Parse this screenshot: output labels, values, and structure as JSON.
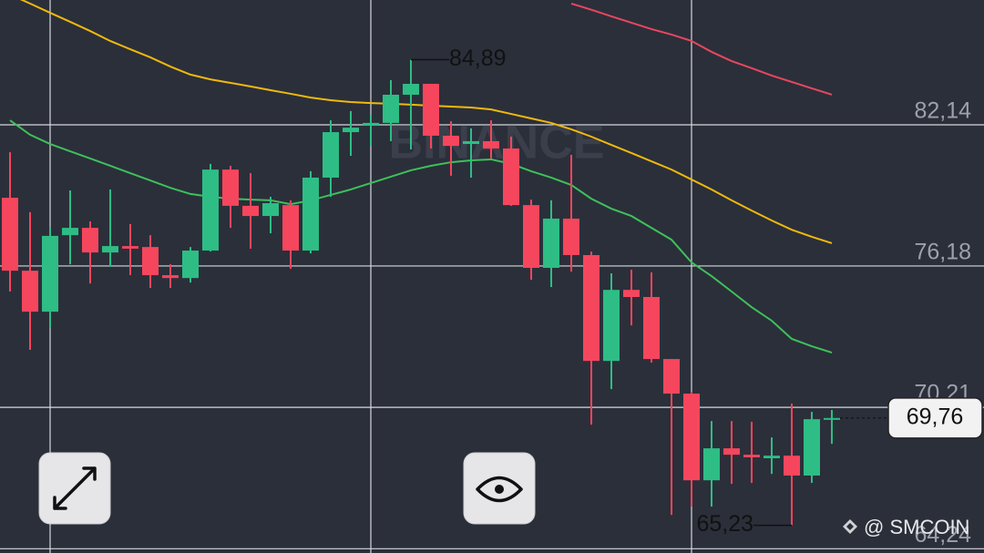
{
  "chart_data": {
    "type": "candlestick",
    "ylim": [
      64.06,
      87.41
    ],
    "yticks": [
      {
        "value": 82.14,
        "label": "82,14"
      },
      {
        "value": 76.18,
        "label": "76,18"
      },
      {
        "value": 70.21,
        "label": "70,21"
      },
      {
        "value": 64.24,
        "label": "64,24"
      }
    ],
    "grid": true,
    "up_color": "#2ebd85",
    "down_color": "#f6465d",
    "open": [
      79.06,
      75.98,
      74.25,
      77.48,
      77.79,
      76.75,
      77.02,
      76.98,
      75.79,
      75.67,
      76.83,
      80.25,
      78.72,
      78.29,
      78.75,
      76.83,
      79.91,
      81.83,
      82.1,
      82.22,
      83.41,
      83.87,
      81.68,
      81.33,
      81.45,
      81.14,
      78.75,
      76.1,
      78.18,
      76.64,
      72.17,
      75.17,
      74.87,
      72.25,
      70.79,
      67.13,
      68.48,
      68.21,
      68.06,
      68.17,
      67.33,
      69.71
    ],
    "high": [
      80.98,
      78.45,
      77.83,
      79.37,
      78.06,
      79.41,
      77.95,
      77.48,
      76.25,
      76.98,
      80.49,
      80.41,
      80.1,
      79.1,
      78.95,
      80.18,
      82.33,
      82.72,
      82.56,
      84.03,
      84.89,
      83.87,
      82.29,
      81.99,
      82.33,
      81.64,
      78.98,
      78.95,
      80.87,
      76.79,
      75.87,
      76.02,
      75.91,
      72.25,
      70.87,
      69.63,
      69.63,
      69.6,
      68.94,
      70.37,
      70.02,
      70.1
    ],
    "low": [
      75.1,
      72.64,
      73.56,
      76.25,
      75.44,
      76.14,
      75.79,
      75.25,
      75.25,
      75.48,
      76.79,
      77.79,
      76.91,
      77.56,
      76.06,
      76.71,
      79.1,
      80.83,
      81.25,
      81.45,
      81.1,
      81.14,
      79.99,
      79.91,
      80.72,
      78.72,
      75.6,
      75.29,
      75.94,
      69.48,
      70.98,
      73.67,
      72.1,
      65.67,
      66.02,
      66.02,
      66.98,
      67.02,
      67.4,
      65.23,
      67.02,
      68.67
    ],
    "close": [
      75.98,
      74.25,
      77.45,
      77.79,
      76.75,
      77.02,
      76.91,
      75.79,
      75.67,
      76.83,
      80.25,
      78.72,
      78.29,
      78.83,
      76.83,
      79.91,
      81.83,
      82.02,
      82.22,
      83.41,
      83.87,
      81.68,
      81.25,
      81.45,
      81.14,
      78.75,
      76.1,
      78.18,
      76.64,
      72.17,
      75.17,
      74.87,
      72.25,
      70.79,
      67.13,
      68.48,
      68.21,
      68.1,
      68.17,
      67.33,
      69.71,
      69.76
    ],
    "ma": [
      {
        "color": "#e8475f",
        "values": [
          null,
          null,
          null,
          null,
          null,
          null,
          null,
          null,
          null,
          null,
          null,
          null,
          null,
          null,
          null,
          null,
          null,
          null,
          null,
          null,
          null,
          null,
          null,
          null,
          null,
          null,
          null,
          null,
          87.26,
          87.0,
          86.72,
          86.45,
          86.18,
          85.95,
          85.68,
          85.22,
          84.83,
          84.53,
          84.22,
          83.95,
          83.68,
          83.41
        ]
      },
      {
        "color": "#f0b90b",
        "values": [
          87.64,
          87.26,
          86.87,
          86.49,
          86.1,
          85.68,
          85.33,
          84.99,
          84.6,
          84.26,
          84.06,
          83.91,
          83.76,
          83.6,
          83.45,
          83.29,
          83.18,
          83.1,
          83.06,
          83.03,
          82.99,
          82.95,
          82.91,
          82.87,
          82.79,
          82.6,
          82.41,
          82.22,
          81.95,
          81.64,
          81.29,
          80.95,
          80.6,
          80.25,
          79.83,
          79.41,
          78.95,
          78.52,
          78.1,
          77.71,
          77.41,
          77.14
        ]
      },
      {
        "color": "#3dc15a",
        "values": [
          82.33,
          81.72,
          81.33,
          81.02,
          80.72,
          80.41,
          80.1,
          79.79,
          79.48,
          79.22,
          79.1,
          79.02,
          78.98,
          78.95,
          78.79,
          78.95,
          79.18,
          79.41,
          79.68,
          79.95,
          80.22,
          80.41,
          80.56,
          80.64,
          80.68,
          80.49,
          80.18,
          79.91,
          79.6,
          79.02,
          78.6,
          78.29,
          77.79,
          77.29,
          76.33,
          75.75,
          75.1,
          74.44,
          73.87,
          73.1,
          72.79,
          72.52
        ]
      }
    ],
    "high_annotation": {
      "value": 84.89,
      "label": "84,89"
    },
    "low_annotation": {
      "value": 65.23,
      "label": "65,23"
    },
    "last_price": {
      "value": 69.76,
      "label": "69,76"
    },
    "watermarks": [
      "BINANCE",
      "@ SMCOIN"
    ]
  }
}
